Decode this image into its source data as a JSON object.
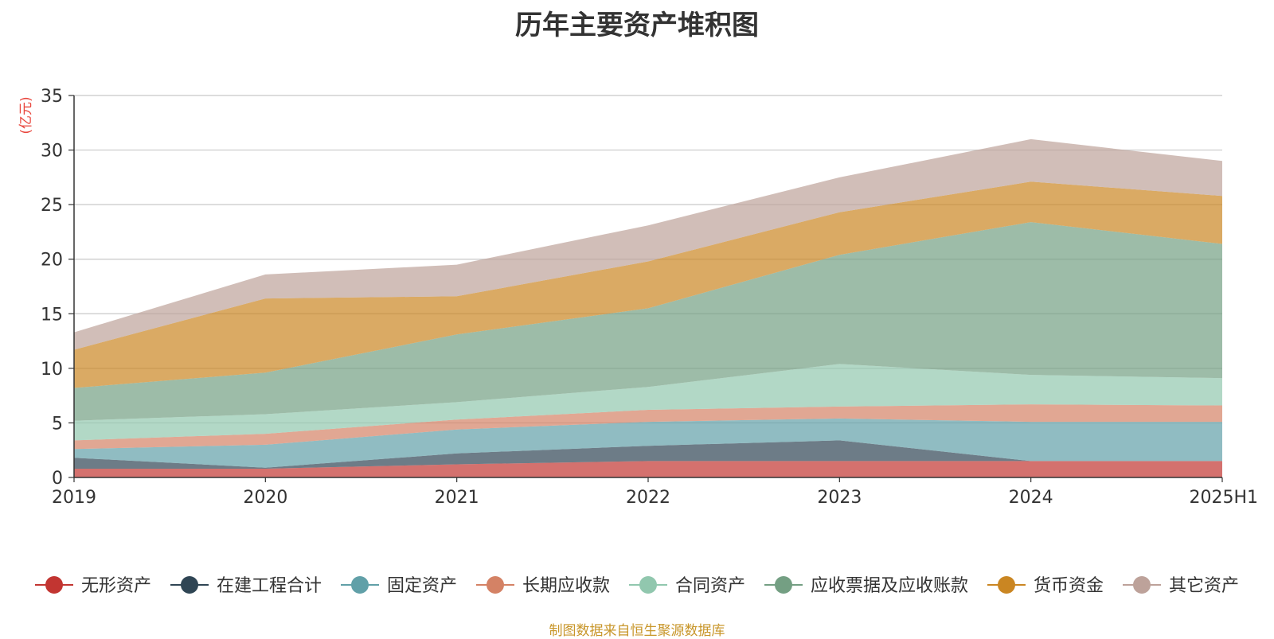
{
  "chart_data": {
    "type": "area",
    "stacked": true,
    "title": "历年主要资产堆积图",
    "ylabel": "(亿元)",
    "xlabel": "",
    "ylim": [
      0,
      35
    ],
    "yticks": [
      0,
      5,
      10,
      15,
      20,
      25,
      30,
      35
    ],
    "categories": [
      "2019",
      "2020",
      "2021",
      "2022",
      "2023",
      "2024",
      "2025H1"
    ],
    "grid": true,
    "legend_position": "bottom",
    "series": [
      {
        "name": "无形资产",
        "color": "#c23531",
        "values": [
          0.8,
          0.8,
          1.2,
          1.5,
          1.5,
          1.5,
          1.5
        ]
      },
      {
        "name": "在建工程合计",
        "color": "#2f4554",
        "values": [
          1.0,
          0.1,
          1.0,
          1.4,
          1.9,
          0.0,
          0.0
        ]
      },
      {
        "name": "固定资产",
        "color": "#61a0a8",
        "values": [
          0.8,
          2.1,
          2.2,
          2.2,
          2.0,
          3.6,
          3.6
        ]
      },
      {
        "name": "长期应收款",
        "color": "#d48265",
        "values": [
          0.8,
          1.0,
          0.9,
          1.1,
          1.1,
          1.6,
          1.5
        ]
      },
      {
        "name": "合同资产",
        "color": "#91c7ae",
        "values": [
          1.8,
          1.8,
          1.6,
          2.1,
          3.9,
          2.7,
          2.5
        ]
      },
      {
        "name": "应收票据及应收账款",
        "color": "#749f83",
        "values": [
          3.0,
          3.8,
          6.2,
          7.2,
          10.0,
          14.0,
          12.3
        ]
      },
      {
        "name": "货币资金",
        "color": "#ca8622",
        "values": [
          3.5,
          6.8,
          3.5,
          4.3,
          3.9,
          3.7,
          4.4
        ]
      },
      {
        "name": "其它资产",
        "color": "#bda29a",
        "values": [
          1.6,
          2.2,
          2.9,
          3.3,
          3.2,
          3.9,
          3.2
        ]
      }
    ]
  },
  "source_note": "制图数据来自恒生聚源数据库"
}
